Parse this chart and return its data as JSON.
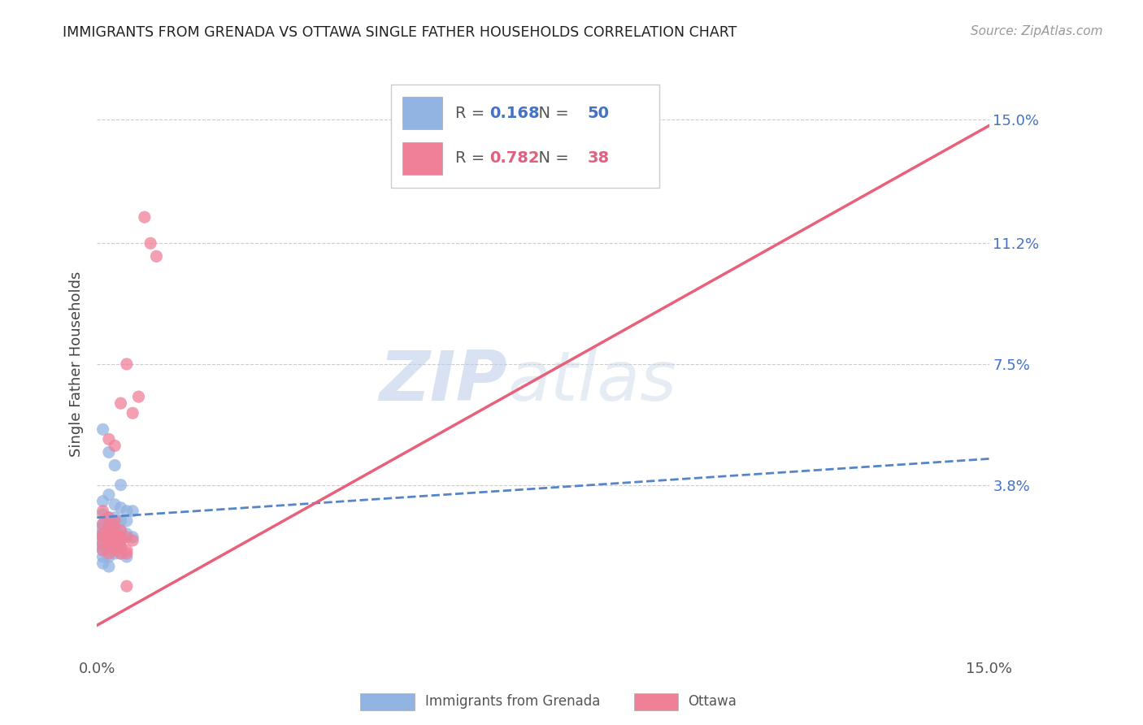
{
  "title": "IMMIGRANTS FROM GRENADA VS OTTAWA SINGLE FATHER HOUSEHOLDS CORRELATION CHART",
  "source": "Source: ZipAtlas.com",
  "ylabel": "Single Father Households",
  "ytick_labels": [
    "15.0%",
    "11.2%",
    "7.5%",
    "3.8%"
  ],
  "ytick_values": [
    0.15,
    0.112,
    0.075,
    0.038
  ],
  "xmin": 0.0,
  "xmax": 0.15,
  "ymin": -0.015,
  "ymax": 0.165,
  "watermark_zip": "ZIP",
  "watermark_atlas": "atlas",
  "legend_blue_r": "0.168",
  "legend_blue_n": "50",
  "legend_pink_r": "0.782",
  "legend_pink_n": "38",
  "legend_label_blue": "Immigrants from Grenada",
  "legend_label_pink": "Ottawa",
  "blue_color": "#92B4E3",
  "pink_color": "#F08098",
  "blue_line_color": "#5585C8",
  "pink_line_color": "#E8607A",
  "grid_color": "#CCCCCC",
  "background_color": "#FFFFFF",
  "blue_scatter": [
    [
      0.001,
      0.055
    ],
    [
      0.002,
      0.048
    ],
    [
      0.003,
      0.044
    ],
    [
      0.004,
      0.038
    ],
    [
      0.002,
      0.035
    ],
    [
      0.001,
      0.033
    ],
    [
      0.003,
      0.032
    ],
    [
      0.004,
      0.031
    ],
    [
      0.005,
      0.03
    ],
    [
      0.006,
      0.03
    ],
    [
      0.001,
      0.029
    ],
    [
      0.002,
      0.028
    ],
    [
      0.003,
      0.028
    ],
    [
      0.004,
      0.027
    ],
    [
      0.005,
      0.027
    ],
    [
      0.003,
      0.026
    ],
    [
      0.002,
      0.026
    ],
    [
      0.001,
      0.026
    ],
    [
      0.002,
      0.025
    ],
    [
      0.003,
      0.025
    ],
    [
      0.001,
      0.025
    ],
    [
      0.004,
      0.024
    ],
    [
      0.001,
      0.024
    ],
    [
      0.002,
      0.024
    ],
    [
      0.003,
      0.023
    ],
    [
      0.001,
      0.023
    ],
    [
      0.005,
      0.023
    ],
    [
      0.004,
      0.022
    ],
    [
      0.006,
      0.022
    ],
    [
      0.002,
      0.022
    ],
    [
      0.001,
      0.022
    ],
    [
      0.003,
      0.022
    ],
    [
      0.001,
      0.021
    ],
    [
      0.002,
      0.021
    ],
    [
      0.003,
      0.021
    ],
    [
      0.004,
      0.021
    ],
    [
      0.001,
      0.02
    ],
    [
      0.002,
      0.02
    ],
    [
      0.003,
      0.019
    ],
    [
      0.001,
      0.019
    ],
    [
      0.004,
      0.019
    ],
    [
      0.002,
      0.018
    ],
    [
      0.001,
      0.018
    ],
    [
      0.003,
      0.017
    ],
    [
      0.004,
      0.017
    ],
    [
      0.005,
      0.016
    ],
    [
      0.001,
      0.016
    ],
    [
      0.002,
      0.016
    ],
    [
      0.001,
      0.014
    ],
    [
      0.002,
      0.013
    ]
  ],
  "pink_scatter": [
    [
      0.001,
      0.03
    ],
    [
      0.002,
      0.028
    ],
    [
      0.003,
      0.027
    ],
    [
      0.001,
      0.026
    ],
    [
      0.002,
      0.025
    ],
    [
      0.003,
      0.025
    ],
    [
      0.004,
      0.024
    ],
    [
      0.002,
      0.024
    ],
    [
      0.001,
      0.023
    ],
    [
      0.003,
      0.023
    ],
    [
      0.001,
      0.022
    ],
    [
      0.002,
      0.022
    ],
    [
      0.002,
      0.052
    ],
    [
      0.003,
      0.05
    ],
    [
      0.004,
      0.063
    ],
    [
      0.005,
      0.075
    ],
    [
      0.006,
      0.06
    ],
    [
      0.007,
      0.065
    ],
    [
      0.008,
      0.12
    ],
    [
      0.009,
      0.112
    ],
    [
      0.01,
      0.108
    ],
    [
      0.004,
      0.022
    ],
    [
      0.003,
      0.021
    ],
    [
      0.002,
      0.021
    ],
    [
      0.005,
      0.022
    ],
    [
      0.006,
      0.021
    ],
    [
      0.004,
      0.021
    ],
    [
      0.005,
      0.007
    ],
    [
      0.003,
      0.018
    ],
    [
      0.004,
      0.017
    ],
    [
      0.005,
      0.017
    ],
    [
      0.002,
      0.02
    ],
    [
      0.001,
      0.02
    ],
    [
      0.003,
      0.019
    ],
    [
      0.004,
      0.019
    ],
    [
      0.005,
      0.018
    ],
    [
      0.001,
      0.018
    ],
    [
      0.002,
      0.017
    ]
  ],
  "blue_line": {
    "x0": 0.0,
    "y0": 0.028,
    "x1": 0.15,
    "y1": 0.046
  },
  "pink_line": {
    "x0": 0.0,
    "y0": -0.005,
    "x1": 0.15,
    "y1": 0.148
  }
}
